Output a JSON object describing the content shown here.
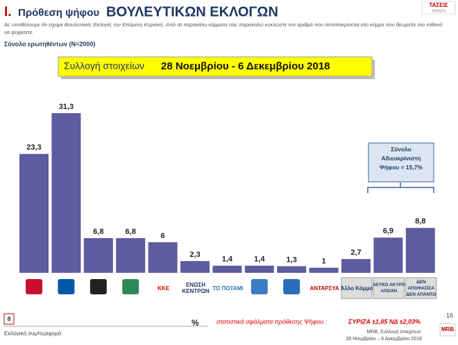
{
  "header": {
    "number": "Ι.",
    "title_small": "Πρόθεση ψήφου",
    "title_big": "ΒΟΥΛΕΥΤΙΚΩΝ ΕΚΛΟΓΩΝ",
    "question": "Ας υποθέσουμε ότι είχαμε Βουλευτικές Εκλογές την Επόμενη Κυριακή. Από τα παρακάτω κόμματα σας παρακαλώ κυκλώστε τον αριθμό που ανταποκρίνεται στο κόμμα που θεωρείτε πιο πιθανό να ψηφίσετε.",
    "sample": "Σύνολο ερωτηθέντων (N=2000)",
    "logo_top": "ΤΑΣΕΙΣ",
    "logo_bottom": "TRENDS"
  },
  "period": {
    "label": "Συλλογή στοιχείων",
    "dates": "28 Νοεμβρίου - 6 Δεκεμβρίου 2018"
  },
  "chart_data": {
    "type": "bar",
    "categories": [
      null,
      null,
      null,
      null,
      "ΚΚΕ",
      "ΕΝΩΣΗ ΚΕΝΤΡΩΝ",
      "ΤΟ ΠΟΤΑΜΙ",
      null,
      null,
      "ΑΝΤΑΡΣΥΑ",
      "Άλλο Κόμμα",
      "ΛΕΥΚΟ ΑΚΥΡΟ ΑΠΟΧΗ",
      "ΔΕΝ ΑΠΟΦΑΣΙΣΑ ΔΕΝ ΑΠΑΝΤΩ"
    ],
    "values": [
      23.3,
      31.3,
      6.8,
      6.8,
      6,
      2.3,
      1.4,
      1.4,
      1.3,
      1,
      2.7,
      6.9,
      8.8
    ],
    "value_labels": [
      "23,3",
      "31,3",
      "6,8",
      "6,8",
      "6",
      "2,3",
      "1,4",
      "1,4",
      "1,3",
      "1",
      "2,7",
      "6,9",
      "8,8"
    ],
    "color": "#5f5b9f",
    "annotation": "Σύνολο Αδιευκρίνιστη Ψήφου = 15,7%",
    "unit": "%"
  },
  "footer": {
    "page": "8",
    "section": "Εκλογική συμπεριφορά",
    "error_label": "στατιστικά σφάλματα πρόθεσης Ψήφου :",
    "error_values": "ΣΥΡΙΖΑ ±1,85 ΝΔ ±2,03%",
    "source": "MRB, Συλλογή στοιχείων:",
    "source_dates": "28 Νοεμβρίου – 6 Δεκεμβρίου 2018",
    "slide": "16",
    "brand": "MRB"
  }
}
